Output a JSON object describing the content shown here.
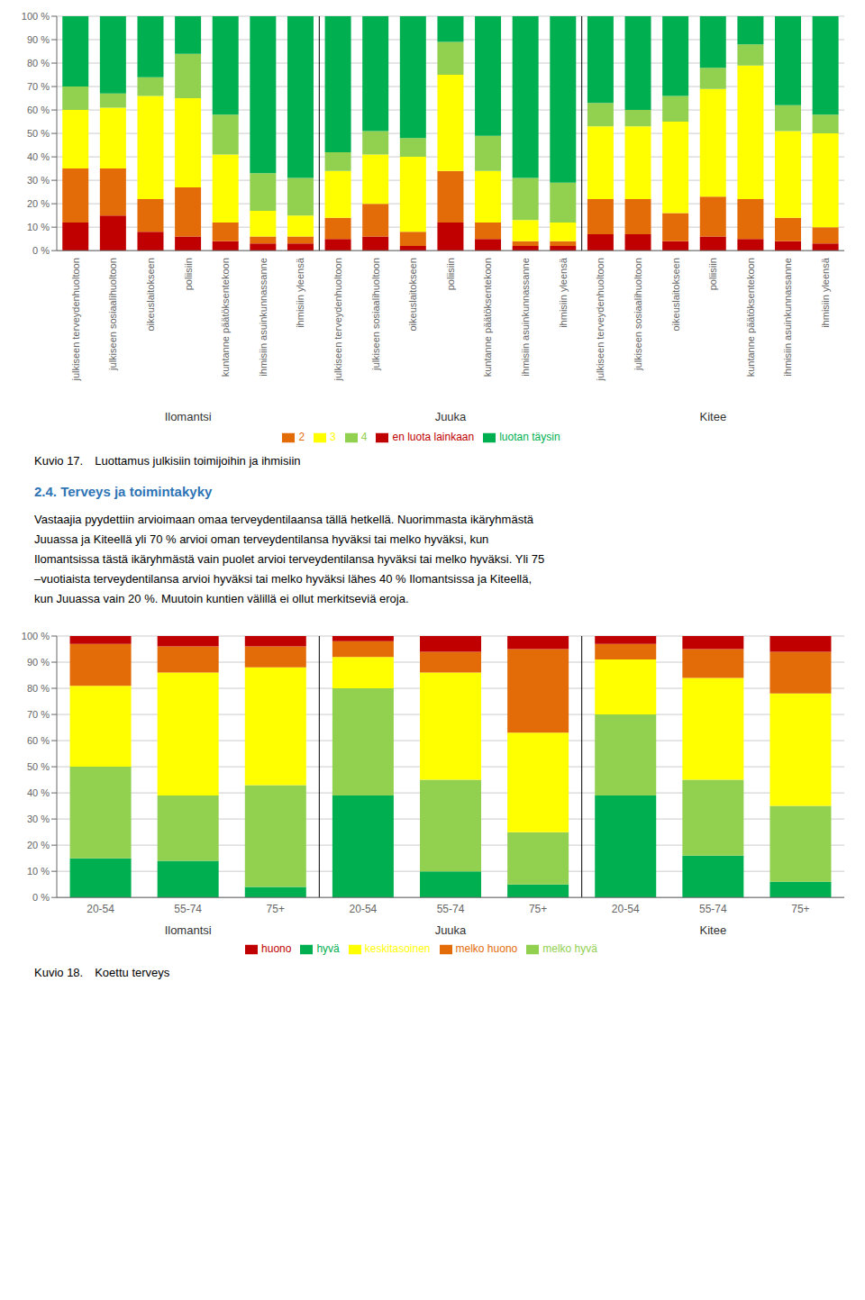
{
  "chart_data": [
    {
      "type": "bar",
      "title": "Kuvio 17. Luottamus julkisiin toimijoihin ja ihmisiin",
      "categories": [
        "julkiseen terveydenhuoltoon",
        "julkiseen sosiaalihuoltoon",
        "oikeuslaitokseen",
        "poliisiin",
        "kuntanne päätöksentekoon",
        "ihmisiin asuinkunnassanne",
        "ihmisiin yleensä",
        "julkiseen terveydenhuoltoon",
        "julkiseen sosiaalihuoltoon",
        "oikeuslaitokseen",
        "poliisiin",
        "kuntanne päätöksentekoon",
        "ihmisiin asuinkunnassanne",
        "ihmisiin yleensä",
        "julkiseen terveydenhuoltoon",
        "julkiseen sosiaalihuoltoon",
        "oikeuslaitokseen",
        "poliisiin",
        "kuntanne päätöksentekoon",
        "ihmisiin asuinkunnassanne",
        "ihmisiin yleensä"
      ],
      "annotations": [
        "Ilomantsi",
        "Juuka",
        "Kitee"
      ],
      "series": [
        {
          "name": "en luota lainkaan",
          "color": "#c00000",
          "values": [
            12,
            15,
            8,
            6,
            4,
            3,
            3,
            5,
            6,
            2,
            12,
            5,
            2,
            2,
            7,
            7,
            4,
            6,
            5,
            4,
            3
          ]
        },
        {
          "name": "2",
          "color": "#e36c09",
          "values": [
            23,
            20,
            14,
            21,
            8,
            3,
            3,
            9,
            14,
            6,
            22,
            7,
            2,
            2,
            15,
            15,
            12,
            17,
            17,
            10,
            7
          ]
        },
        {
          "name": "3",
          "color": "#ffff00",
          "values": [
            25,
            26,
            44,
            38,
            29,
            11,
            9,
            20,
            21,
            32,
            41,
            22,
            9,
            8,
            31,
            31,
            39,
            46,
            57,
            37,
            40
          ]
        },
        {
          "name": "4",
          "color": "#92d050",
          "values": [
            10,
            6,
            8,
            19,
            17,
            16,
            16,
            8,
            10,
            8,
            14,
            15,
            18,
            17,
            10,
            7,
            11,
            9,
            9,
            11,
            8
          ]
        },
        {
          "name": "luotan täysin",
          "color": "#00b050",
          "values": [
            30,
            33,
            26,
            16,
            42,
            67,
            69,
            58,
            49,
            52,
            11,
            51,
            69,
            71,
            37,
            40,
            34,
            22,
            12,
            38,
            42
          ]
        }
      ],
      "stacked": true,
      "grid": true,
      "ylim": [
        0,
        100
      ],
      "yticks": [
        {
          "value": 0,
          "label": "0 %"
        },
        {
          "value": 10,
          "label": "10 %"
        },
        {
          "value": 20,
          "label": "20 %"
        },
        {
          "value": 30,
          "label": "30 %"
        },
        {
          "value": 40,
          "label": "40 %"
        },
        {
          "value": 50,
          "label": "50 %"
        },
        {
          "value": 60,
          "label": "60 %"
        },
        {
          "value": 70,
          "label": "70 %"
        },
        {
          "value": 80,
          "label": "80 %"
        },
        {
          "value": 90,
          "label": "90 %"
        },
        {
          "value": 100,
          "label": "100 %"
        }
      ]
    },
    {
      "type": "text",
      "title": "2.4. Terveys ja toimintakyky",
      "color": "#2e74b5",
      "annotations": [
        "Vastaajia pyydettiin arvioimaan omaa terveydentilaansa tällä hetkellä. Nuorimmasta ikäryhmästä",
        "Juuassa ja Kiteellä yli 70 % arvioi oman terveydentilansa hyväksi tai melko hyväksi, kun",
        "Ilomantsissa tästä ikäryhmästä vain puolet arvioi terveydentilansa hyväksi tai melko hyväksi. Yli 75",
        "–vuotiaista terveydentilansa arvioi hyväksi tai melko hyväksi lähes 40 % Ilomantsissa ja Kiteellä,",
        "kun Juuassa vain 20 %. Muutoin kuntien välillä ei ollut merkitseviä eroja."
      ]
    },
    {
      "type": "bar",
      "title": "Kuvio 18. Koettu terveys",
      "categories": [
        "20-54",
        "55-74",
        "75+",
        "20-54",
        "55-74",
        "75+",
        "20-54",
        "55-74",
        "75+"
      ],
      "annotations": [
        "Ilomantsi",
        "Juuka",
        "Kitee"
      ],
      "series": [
        {
          "name": "hyvä",
          "color": "#00b050",
          "values": [
            15,
            14,
            4,
            39,
            10,
            5,
            39,
            16,
            6
          ]
        },
        {
          "name": "melko hyvä",
          "color": "#92d050",
          "values": [
            35,
            25,
            39,
            41,
            35,
            20,
            31,
            29,
            29
          ]
        },
        {
          "name": "keskitasoinen",
          "color": "#ffff00",
          "values": [
            31,
            47,
            45,
            12,
            41,
            38,
            21,
            39,
            43
          ]
        },
        {
          "name": "melko huono",
          "color": "#e36c09",
          "values": [
            16,
            10,
            8,
            6,
            8,
            32,
            6,
            11,
            16
          ]
        },
        {
          "name": "huono",
          "color": "#c00000",
          "values": [
            3,
            4,
            4,
            2,
            6,
            5,
            3,
            5,
            6
          ]
        }
      ],
      "stacked": true,
      "grid": true,
      "ylim": [
        0,
        100
      ],
      "yticks": [
        {
          "value": 0,
          "label": "0 %"
        },
        {
          "value": 10,
          "label": "10 %"
        },
        {
          "value": 20,
          "label": "20 %"
        },
        {
          "value": 30,
          "label": "30 %"
        },
        {
          "value": 40,
          "label": "40 %"
        },
        {
          "value": 50,
          "label": "50 %"
        },
        {
          "value": 60,
          "label": "60 %"
        },
        {
          "value": 70,
          "label": "70 %"
        },
        {
          "value": 80,
          "label": "80 %"
        },
        {
          "value": 90,
          "label": "90 %"
        },
        {
          "value": 100,
          "label": "100 %"
        }
      ]
    }
  ]
}
